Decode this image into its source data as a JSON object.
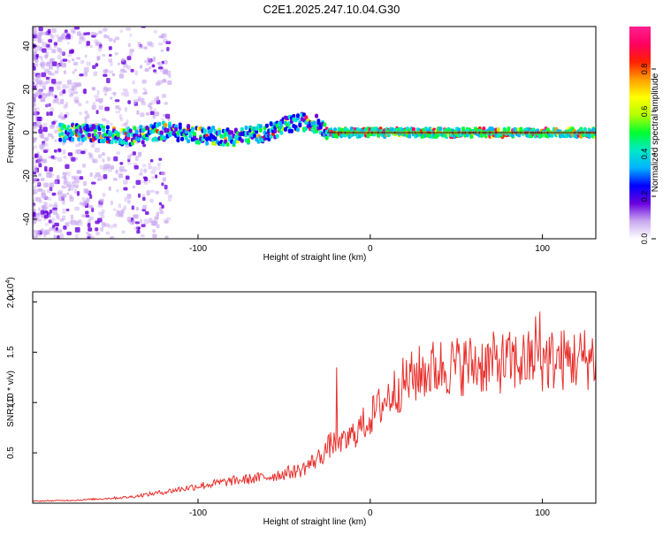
{
  "title": "C2E1.2025.247.10.04.G30",
  "chart_data": [
    {
      "type": "heatmap",
      "xlabel": "Height of straight line (km)",
      "ylabel": "Frequency (Hz)",
      "xlim": [
        -196,
        131
      ],
      "ylim": [
        -49,
        49
      ],
      "xticks": [
        -100,
        0,
        100
      ],
      "yticks": [
        -40,
        -20,
        0,
        20,
        40
      ],
      "colorbar": {
        "label": "Normalized spectral amplitude",
        "range": [
          0,
          1
        ],
        "ticks": [
          "0.0",
          "0.2",
          "0.4",
          "0.6",
          "0.8"
        ],
        "colors": [
          "#ffffff",
          "#c9a8f0",
          "#6a00e0",
          "#0000ff",
          "#00b4ff",
          "#00e8c8",
          "#00ff30",
          "#b4ff00",
          "#ffff00",
          "#ffa000",
          "#ff2000",
          "#ff0060",
          "#ff2090"
        ]
      },
      "ridge": {
        "description_points_x": [
          -176,
          -160,
          -140,
          -120,
          -100,
          -80,
          -60,
          -50,
          -40,
          -30,
          -25,
          -20,
          0,
          50,
          100,
          131
        ],
        "description_points_y": [
          0,
          0,
          -2,
          1,
          -1,
          -2,
          0,
          3,
          5,
          4,
          1,
          0,
          0,
          0,
          0,
          0
        ]
      }
    },
    {
      "type": "line",
      "xlabel": "Height of straight line (km)",
      "ylabel": "SNR (10 * v/v)",
      "multiplier": "(x10⁴)",
      "xlim": [
        -196,
        131
      ],
      "ylim": [
        0,
        2.1
      ],
      "xticks": [
        -100,
        0,
        100
      ],
      "yticks": [
        0.5,
        1.0,
        1.5,
        2.0
      ],
      "ytick_labels": [
        "0.5",
        "1.0",
        "1.5",
        "2.0"
      ],
      "color": "#e8302c",
      "trend": {
        "x": [
          -196,
          -170,
          -140,
          -120,
          -100,
          -80,
          -60,
          -40,
          -30,
          -22,
          -18,
          -10,
          0,
          10,
          20,
          30,
          40,
          60,
          80,
          100,
          120,
          131
        ],
        "y": [
          0.02,
          0.03,
          0.06,
          0.11,
          0.17,
          0.22,
          0.26,
          0.33,
          0.45,
          0.6,
          0.55,
          0.68,
          0.85,
          1.05,
          1.2,
          1.3,
          1.35,
          1.38,
          1.4,
          1.42,
          1.43,
          1.45
        ]
      }
    }
  ]
}
